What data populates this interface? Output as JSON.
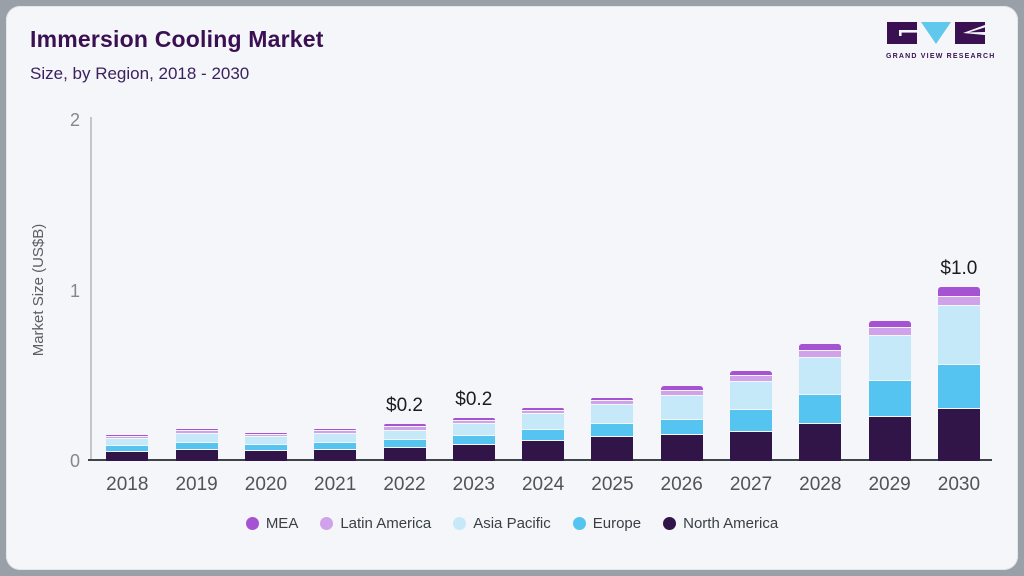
{
  "header": {
    "title": "Immersion Cooling Market",
    "subtitle": "Size, by Region, 2018 - 2030",
    "logo_text": "GRAND VIEW RESEARCH"
  },
  "chart_data": {
    "type": "bar",
    "stacked": true,
    "title": "Immersion Cooling Market",
    "subtitle": "Size, by Region, 2018 - 2030",
    "xlabel": "",
    "ylabel": "Market Size (US$B)",
    "ylim": [
      0,
      2
    ],
    "yticks": [
      "0",
      "1",
      "2"
    ],
    "grid": false,
    "legend_position": "bottom",
    "legend_order": [
      "MEA",
      "Latin America",
      "Asia Pacific",
      "Europe",
      "North America"
    ],
    "categories": [
      "2018",
      "2019",
      "2020",
      "2021",
      "2022",
      "2023",
      "2024",
      "2025",
      "2026",
      "2027",
      "2028",
      "2029",
      "2030"
    ],
    "series": [
      {
        "name": "North America",
        "color": "#311549",
        "values": [
          0.05,
          0.065,
          0.059,
          0.064,
          0.077,
          0.094,
          0.115,
          0.14,
          0.152,
          0.172,
          0.217,
          0.258,
          0.307
        ]
      },
      {
        "name": "Europe",
        "color": "#55c4f0",
        "values": [
          0.028,
          0.034,
          0.031,
          0.034,
          0.039,
          0.049,
          0.06,
          0.072,
          0.082,
          0.121,
          0.164,
          0.205,
          0.25
        ]
      },
      {
        "name": "Asia Pacific",
        "color": "#c5e9f8",
        "values": [
          0.037,
          0.045,
          0.043,
          0.047,
          0.049,
          0.066,
          0.086,
          0.105,
          0.133,
          0.157,
          0.213,
          0.26,
          0.34
        ]
      },
      {
        "name": "Latin America",
        "color": "#cfa2e9",
        "values": [
          0.005,
          0.009,
          0.008,
          0.009,
          0.016,
          0.014,
          0.014,
          0.016,
          0.023,
          0.027,
          0.033,
          0.039,
          0.045
        ]
      },
      {
        "name": "MEA",
        "color": "#a552d3",
        "values": [
          0.003,
          0.005,
          0.004,
          0.006,
          0.014,
          0.012,
          0.01,
          0.012,
          0.025,
          0.025,
          0.033,
          0.033,
          0.055
        ]
      }
    ],
    "annotations": [
      {
        "category": "2022",
        "label": "$0.2"
      },
      {
        "category": "2023",
        "label": "$0.2"
      },
      {
        "category": "2030",
        "label": "$1.0"
      }
    ]
  },
  "colors": {
    "card_bg": "#f4f6f9",
    "frame": "#9aa0a7",
    "title": "#3a1053",
    "axis_line": "#c2c6cc",
    "baseline": "#3f434a"
  }
}
